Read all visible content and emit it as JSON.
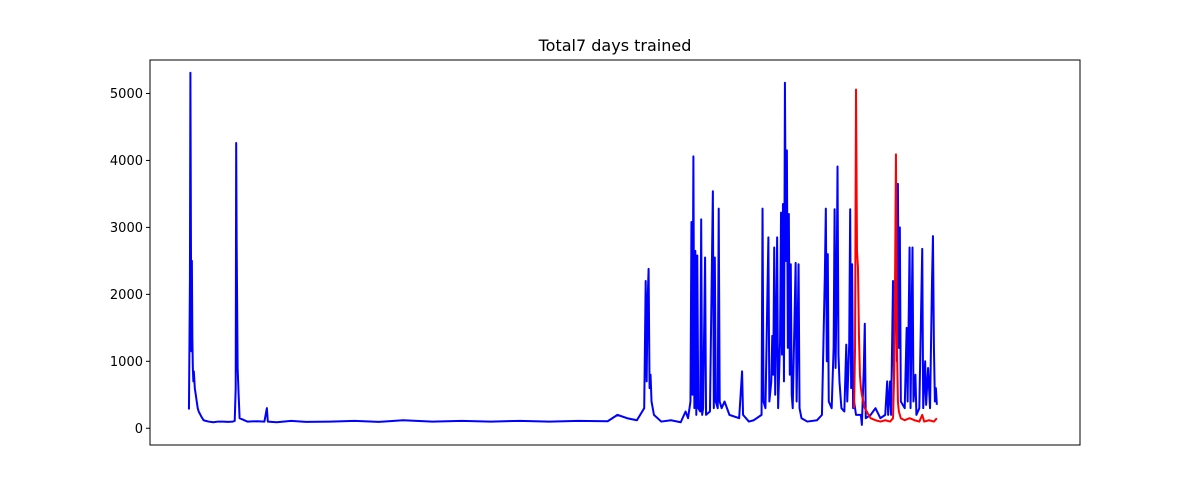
{
  "chart_data": {
    "type": "line",
    "title": "Total7 days trained",
    "xlabel": "",
    "ylabel": "",
    "ylim": [
      -250,
      5500
    ],
    "xlim": [
      -60,
      1850
    ],
    "yticks": [
      0,
      1000,
      2000,
      3000,
      4000,
      5000
    ],
    "xticks_visible": false,
    "grid": false,
    "legend": "none",
    "series": [
      {
        "color": "#0000ff",
        "points": [
          [
            20,
            280
          ],
          [
            22,
            2200
          ],
          [
            23,
            5310
          ],
          [
            24,
            2950
          ],
          [
            25,
            1150
          ],
          [
            26,
            2500
          ],
          [
            27,
            1350
          ],
          [
            28,
            900
          ],
          [
            29,
            700
          ],
          [
            30,
            850
          ],
          [
            32,
            600
          ],
          [
            34,
            500
          ],
          [
            36,
            400
          ],
          [
            38,
            300
          ],
          [
            40,
            250
          ],
          [
            45,
            180
          ],
          [
            50,
            120
          ],
          [
            60,
            100
          ],
          [
            70,
            90
          ],
          [
            80,
            100
          ],
          [
            90,
            100
          ],
          [
            100,
            95
          ],
          [
            110,
            100
          ],
          [
            114,
            110
          ],
          [
            116,
            600
          ],
          [
            117,
            4260
          ],
          [
            118,
            2750
          ],
          [
            120,
            900
          ],
          [
            122,
            500
          ],
          [
            124,
            150
          ],
          [
            140,
            100
          ],
          [
            160,
            105
          ],
          [
            175,
            100
          ],
          [
            180,
            300
          ],
          [
            182,
            100
          ],
          [
            200,
            90
          ],
          [
            230,
            110
          ],
          [
            260,
            95
          ],
          [
            310,
            100
          ],
          [
            360,
            110
          ],
          [
            410,
            95
          ],
          [
            460,
            120
          ],
          [
            520,
            100
          ],
          [
            580,
            110
          ],
          [
            640,
            100
          ],
          [
            700,
            110
          ],
          [
            760,
            100
          ],
          [
            820,
            110
          ],
          [
            880,
            105
          ],
          [
            900,
            200
          ],
          [
            920,
            150
          ],
          [
            940,
            120
          ],
          [
            955,
            300
          ],
          [
            958,
            2200
          ],
          [
            960,
            700
          ],
          [
            962,
            1900
          ],
          [
            964,
            2380
          ],
          [
            966,
            600
          ],
          [
            968,
            800
          ],
          [
            970,
            400
          ],
          [
            975,
            200
          ],
          [
            990,
            100
          ],
          [
            1010,
            120
          ],
          [
            1030,
            90
          ],
          [
            1040,
            250
          ],
          [
            1045,
            150
          ],
          [
            1050,
            400
          ],
          [
            1052,
            3080
          ],
          [
            1054,
            500
          ],
          [
            1056,
            4060
          ],
          [
            1058,
            300
          ],
          [
            1060,
            2650
          ],
          [
            1062,
            200
          ],
          [
            1064,
            2580
          ],
          [
            1066,
            300
          ],
          [
            1070,
            250
          ],
          [
            1072,
            3120
          ],
          [
            1074,
            200
          ],
          [
            1076,
            300
          ],
          [
            1080,
            2550
          ],
          [
            1082,
            200
          ],
          [
            1090,
            250
          ],
          [
            1096,
            3540
          ],
          [
            1098,
            300
          ],
          [
            1100,
            2550
          ],
          [
            1102,
            400
          ],
          [
            1106,
            300
          ],
          [
            1108,
            3280
          ],
          [
            1110,
            400
          ],
          [
            1114,
            300
          ],
          [
            1120,
            400
          ],
          [
            1130,
            200
          ],
          [
            1150,
            150
          ],
          [
            1156,
            850
          ],
          [
            1158,
            200
          ],
          [
            1170,
            100
          ],
          [
            1180,
            120
          ],
          [
            1196,
            200
          ],
          [
            1198,
            3280
          ],
          [
            1200,
            400
          ],
          [
            1204,
            300
          ],
          [
            1210,
            2850
          ],
          [
            1212,
            400
          ],
          [
            1216,
            700
          ],
          [
            1218,
            1380
          ],
          [
            1220,
            800
          ],
          [
            1222,
            2700
          ],
          [
            1224,
            500
          ],
          [
            1226,
            1400
          ],
          [
            1228,
            2850
          ],
          [
            1230,
            300
          ],
          [
            1234,
            1300
          ],
          [
            1236,
            3220
          ],
          [
            1238,
            1100
          ],
          [
            1240,
            3350
          ],
          [
            1242,
            700
          ],
          [
            1244,
            5160
          ],
          [
            1246,
            2500
          ],
          [
            1248,
            4150
          ],
          [
            1250,
            1200
          ],
          [
            1252,
            3200
          ],
          [
            1254,
            800
          ],
          [
            1256,
            2450
          ],
          [
            1258,
            500
          ],
          [
            1260,
            300
          ],
          [
            1266,
            2470
          ],
          [
            1268,
            400
          ],
          [
            1272,
            2450
          ],
          [
            1274,
            300
          ],
          [
            1278,
            150
          ],
          [
            1290,
            100
          ],
          [
            1310,
            120
          ],
          [
            1320,
            200
          ],
          [
            1326,
            2300
          ],
          [
            1328,
            3280
          ],
          [
            1330,
            1000
          ],
          [
            1332,
            2600
          ],
          [
            1334,
            400
          ],
          [
            1340,
            300
          ],
          [
            1344,
            1200
          ],
          [
            1346,
            3270
          ],
          [
            1348,
            900
          ],
          [
            1350,
            2000
          ],
          [
            1352,
            3910
          ],
          [
            1354,
            1100
          ],
          [
            1356,
            700
          ],
          [
            1360,
            300
          ],
          [
            1366,
            250
          ],
          [
            1370,
            1250
          ],
          [
            1372,
            400
          ],
          [
            1376,
            1250
          ],
          [
            1378,
            3270
          ],
          [
            1380,
            600
          ],
          [
            1382,
            2450
          ],
          [
            1384,
            300
          ],
          [
            1386,
            400
          ],
          [
            1390,
            200
          ],
          [
            1400,
            200
          ],
          [
            1402,
            50
          ],
          [
            1406,
            900
          ],
          [
            1408,
            1560
          ],
          [
            1410,
            150
          ],
          [
            1420,
            200
          ],
          [
            1430,
            300
          ],
          [
            1440,
            150
          ],
          [
            1450,
            200
          ],
          [
            1454,
            700
          ],
          [
            1456,
            200
          ],
          [
            1460,
            700
          ],
          [
            1462,
            200
          ],
          [
            1466,
            2200
          ],
          [
            1468,
            700
          ],
          [
            1470,
            2000
          ],
          [
            1472,
            2600
          ],
          [
            1474,
            1000
          ],
          [
            1476,
            3650
          ],
          [
            1478,
            1200
          ],
          [
            1480,
            3000
          ],
          [
            1482,
            400
          ],
          [
            1490,
            300
          ],
          [
            1494,
            1500
          ],
          [
            1496,
            400
          ],
          [
            1500,
            2700
          ],
          [
            1502,
            300
          ],
          [
            1506,
            2700
          ],
          [
            1508,
            400
          ],
          [
            1512,
            800
          ],
          [
            1514,
            200
          ],
          [
            1520,
            300
          ],
          [
            1526,
            2680
          ],
          [
            1528,
            300
          ],
          [
            1532,
            1000
          ],
          [
            1534,
            350
          ],
          [
            1538,
            900
          ],
          [
            1542,
            300
          ],
          [
            1546,
            2170
          ],
          [
            1548,
            2870
          ],
          [
            1550,
            1200
          ],
          [
            1552,
            400
          ],
          [
            1554,
            600
          ],
          [
            1556,
            350
          ]
        ]
      },
      {
        "color": "#ff0000",
        "points": [
          [
            1386,
            300
          ],
          [
            1388,
            1200
          ],
          [
            1390,
            5060
          ],
          [
            1392,
            2650
          ],
          [
            1394,
            2400
          ],
          [
            1396,
            1400
          ],
          [
            1398,
            800
          ],
          [
            1400,
            600
          ],
          [
            1402,
            500
          ],
          [
            1405,
            400
          ],
          [
            1408,
            300
          ],
          [
            1412,
            250
          ],
          [
            1420,
            150
          ],
          [
            1430,
            120
          ],
          [
            1440,
            100
          ],
          [
            1450,
            120
          ],
          [
            1460,
            100
          ],
          [
            1466,
            150
          ],
          [
            1468,
            700
          ],
          [
            1470,
            2000
          ],
          [
            1472,
            4090
          ],
          [
            1474,
            1300
          ],
          [
            1476,
            400
          ],
          [
            1478,
            250
          ],
          [
            1482,
            150
          ],
          [
            1490,
            120
          ],
          [
            1500,
            150
          ],
          [
            1510,
            120
          ],
          [
            1520,
            100
          ],
          [
            1526,
            200
          ],
          [
            1530,
            100
          ],
          [
            1540,
            120
          ],
          [
            1550,
            100
          ],
          [
            1556,
            150
          ]
        ]
      }
    ]
  }
}
